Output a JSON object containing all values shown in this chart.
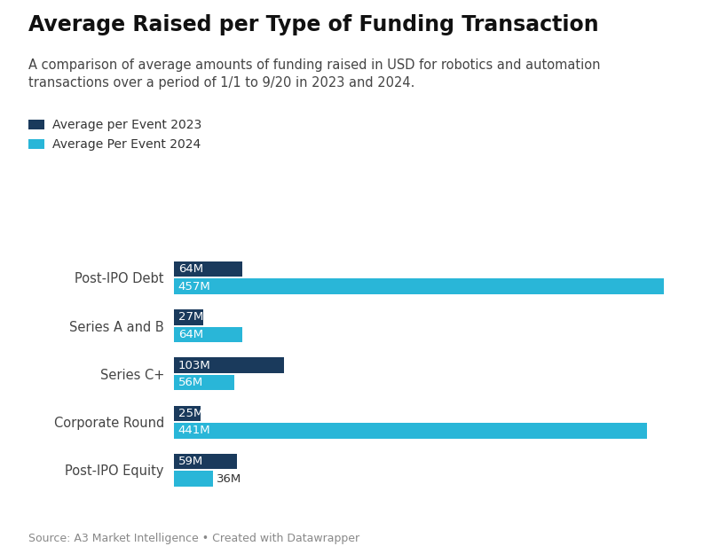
{
  "title": "Average Raised per Type of Funding Transaction",
  "subtitle": "A comparison of average amounts of funding raised in USD for robotics and automation\ntransactions over a period of 1/1 to 9/20 in 2023 and 2024.",
  "categories": [
    "Post-IPO Debt",
    "Series A and B",
    "Series C+",
    "Corporate Round",
    "Post-IPO Equity"
  ],
  "values_2023": [
    64,
    27,
    103,
    25,
    59
  ],
  "values_2024": [
    457,
    64,
    56,
    441,
    36
  ],
  "color_2023": "#1a3a5c",
  "color_2024": "#29b6d8",
  "legend_2023": "Average per Event 2023",
  "legend_2024": "Average Per Event 2024",
  "source": "Source: A3 Market Intelligence • Created with Datawrapper",
  "bg_color": "#ffffff",
  "bar_height": 0.32,
  "xlim": [
    0,
    480
  ],
  "label_fontsize": 9.5,
  "title_fontsize": 17,
  "subtitle_fontsize": 10.5,
  "category_fontsize": 10.5,
  "source_fontsize": 9
}
